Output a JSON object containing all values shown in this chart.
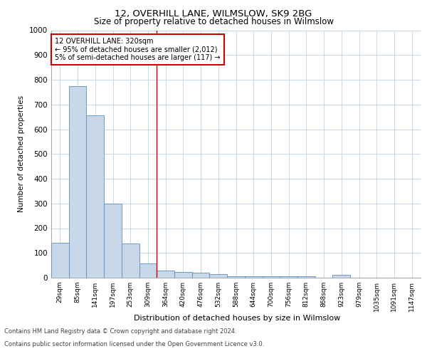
{
  "title1": "12, OVERHILL LANE, WILMSLOW, SK9 2BG",
  "title2": "Size of property relative to detached houses in Wilmslow",
  "xlabel": "Distribution of detached houses by size in Wilmslow",
  "ylabel": "Number of detached properties",
  "categories": [
    "29sqm",
    "85sqm",
    "141sqm",
    "197sqm",
    "253sqm",
    "309sqm",
    "364sqm",
    "420sqm",
    "476sqm",
    "532sqm",
    "588sqm",
    "644sqm",
    "700sqm",
    "756sqm",
    "812sqm",
    "868sqm",
    "923sqm",
    "979sqm",
    "1035sqm",
    "1091sqm",
    "1147sqm"
  ],
  "values": [
    140,
    775,
    655,
    298,
    137,
    57,
    30,
    22,
    20,
    13,
    5,
    5,
    7,
    5,
    5,
    0,
    12,
    0,
    0,
    0,
    0
  ],
  "bar_color": "#c8d8e8",
  "bar_edge_color": "#5a8fc0",
  "property_line_x": 5.5,
  "property_line_color": "#cc0000",
  "annotation_line1": "12 OVERHILL LANE: 320sqm",
  "annotation_line2": "← 95% of detached houses are smaller (2,012)",
  "annotation_line3": "5% of semi-detached houses are larger (117) →",
  "annotation_box_color": "#cc0000",
  "ylim": [
    0,
    1000
  ],
  "yticks": [
    0,
    100,
    200,
    300,
    400,
    500,
    600,
    700,
    800,
    900,
    1000
  ],
  "footer1": "Contains HM Land Registry data © Crown copyright and database right 2024.",
  "footer2": "Contains public sector information licensed under the Open Government Licence v3.0.",
  "bg_color": "#ffffff",
  "grid_color": "#c8d8e8"
}
